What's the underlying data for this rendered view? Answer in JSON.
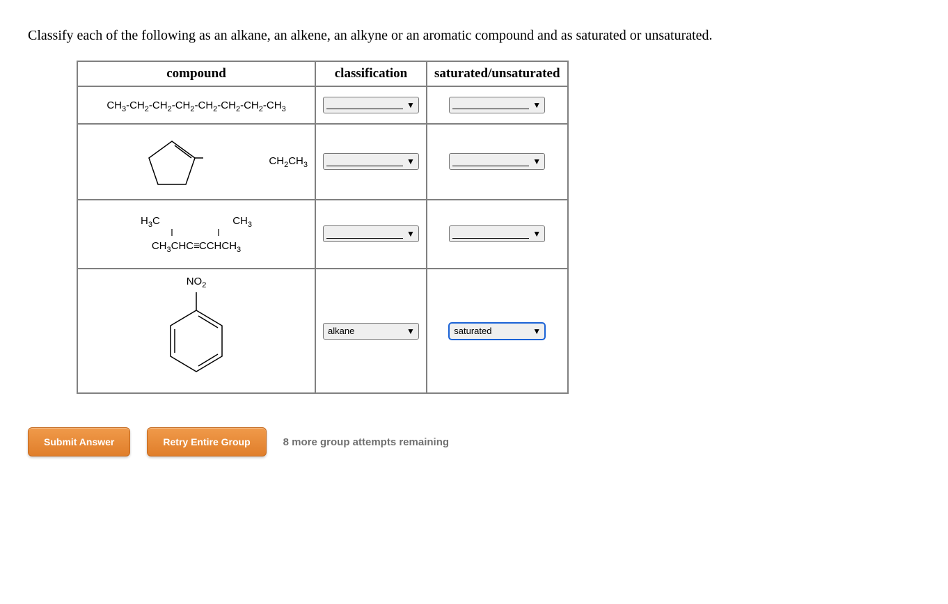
{
  "question": "Classify each of the following as an alkane, an alkene, an alkyne or an aromatic compound and as saturated or unsaturated.",
  "headers": {
    "compound": "compound",
    "classification": "classification",
    "saturation": "saturated/unsaturated"
  },
  "rows": [
    {
      "compound_formula_parts": [
        "CH",
        "3",
        "-CH",
        "2",
        "-CH",
        "2",
        "-CH",
        "2",
        "-CH",
        "2",
        "-CH",
        "2",
        "-CH",
        "2",
        "-CH",
        "3"
      ],
      "classification": {
        "value": "",
        "blank": true,
        "highlighted": false
      },
      "saturation": {
        "value": "",
        "blank": true,
        "highlighted": false
      }
    },
    {
      "compound_svg": "cyclopentene-ethyl",
      "side_label_parts": [
        "CH",
        "2",
        "CH",
        "3"
      ],
      "classification": {
        "value": "",
        "blank": true,
        "highlighted": false
      },
      "saturation": {
        "value": "",
        "blank": true,
        "highlighted": false
      }
    },
    {
      "compound_multiline": {
        "top_left": [
          "H",
          "3",
          "C"
        ],
        "top_right": [
          "CH",
          "3"
        ],
        "bottom": [
          "CH",
          "3",
          "CHC",
          "",
          "CCHCH",
          "3"
        ]
      },
      "classification": {
        "value": "",
        "blank": true,
        "highlighted": false
      },
      "saturation": {
        "value": "",
        "blank": true,
        "highlighted": false
      }
    },
    {
      "compound_svg": "nitrobenzene",
      "top_label_parts": [
        "NO",
        "2"
      ],
      "classification": {
        "value": "alkane",
        "blank": false,
        "highlighted": false
      },
      "saturation": {
        "value": "saturated",
        "blank": false,
        "highlighted": true
      }
    }
  ],
  "buttons": {
    "submit": "Submit Answer",
    "retry": "Retry Entire Group"
  },
  "attempts_text": "8 more group attempts remaining",
  "colors": {
    "table_border": "#808080",
    "button_bg_top": "#f09a4a",
    "button_bg_bottom": "#e07e2a",
    "button_border": "#c56a1f",
    "attempts_text": "#707070",
    "select_border": "#767676",
    "select_highlight": "#1a62d6"
  }
}
